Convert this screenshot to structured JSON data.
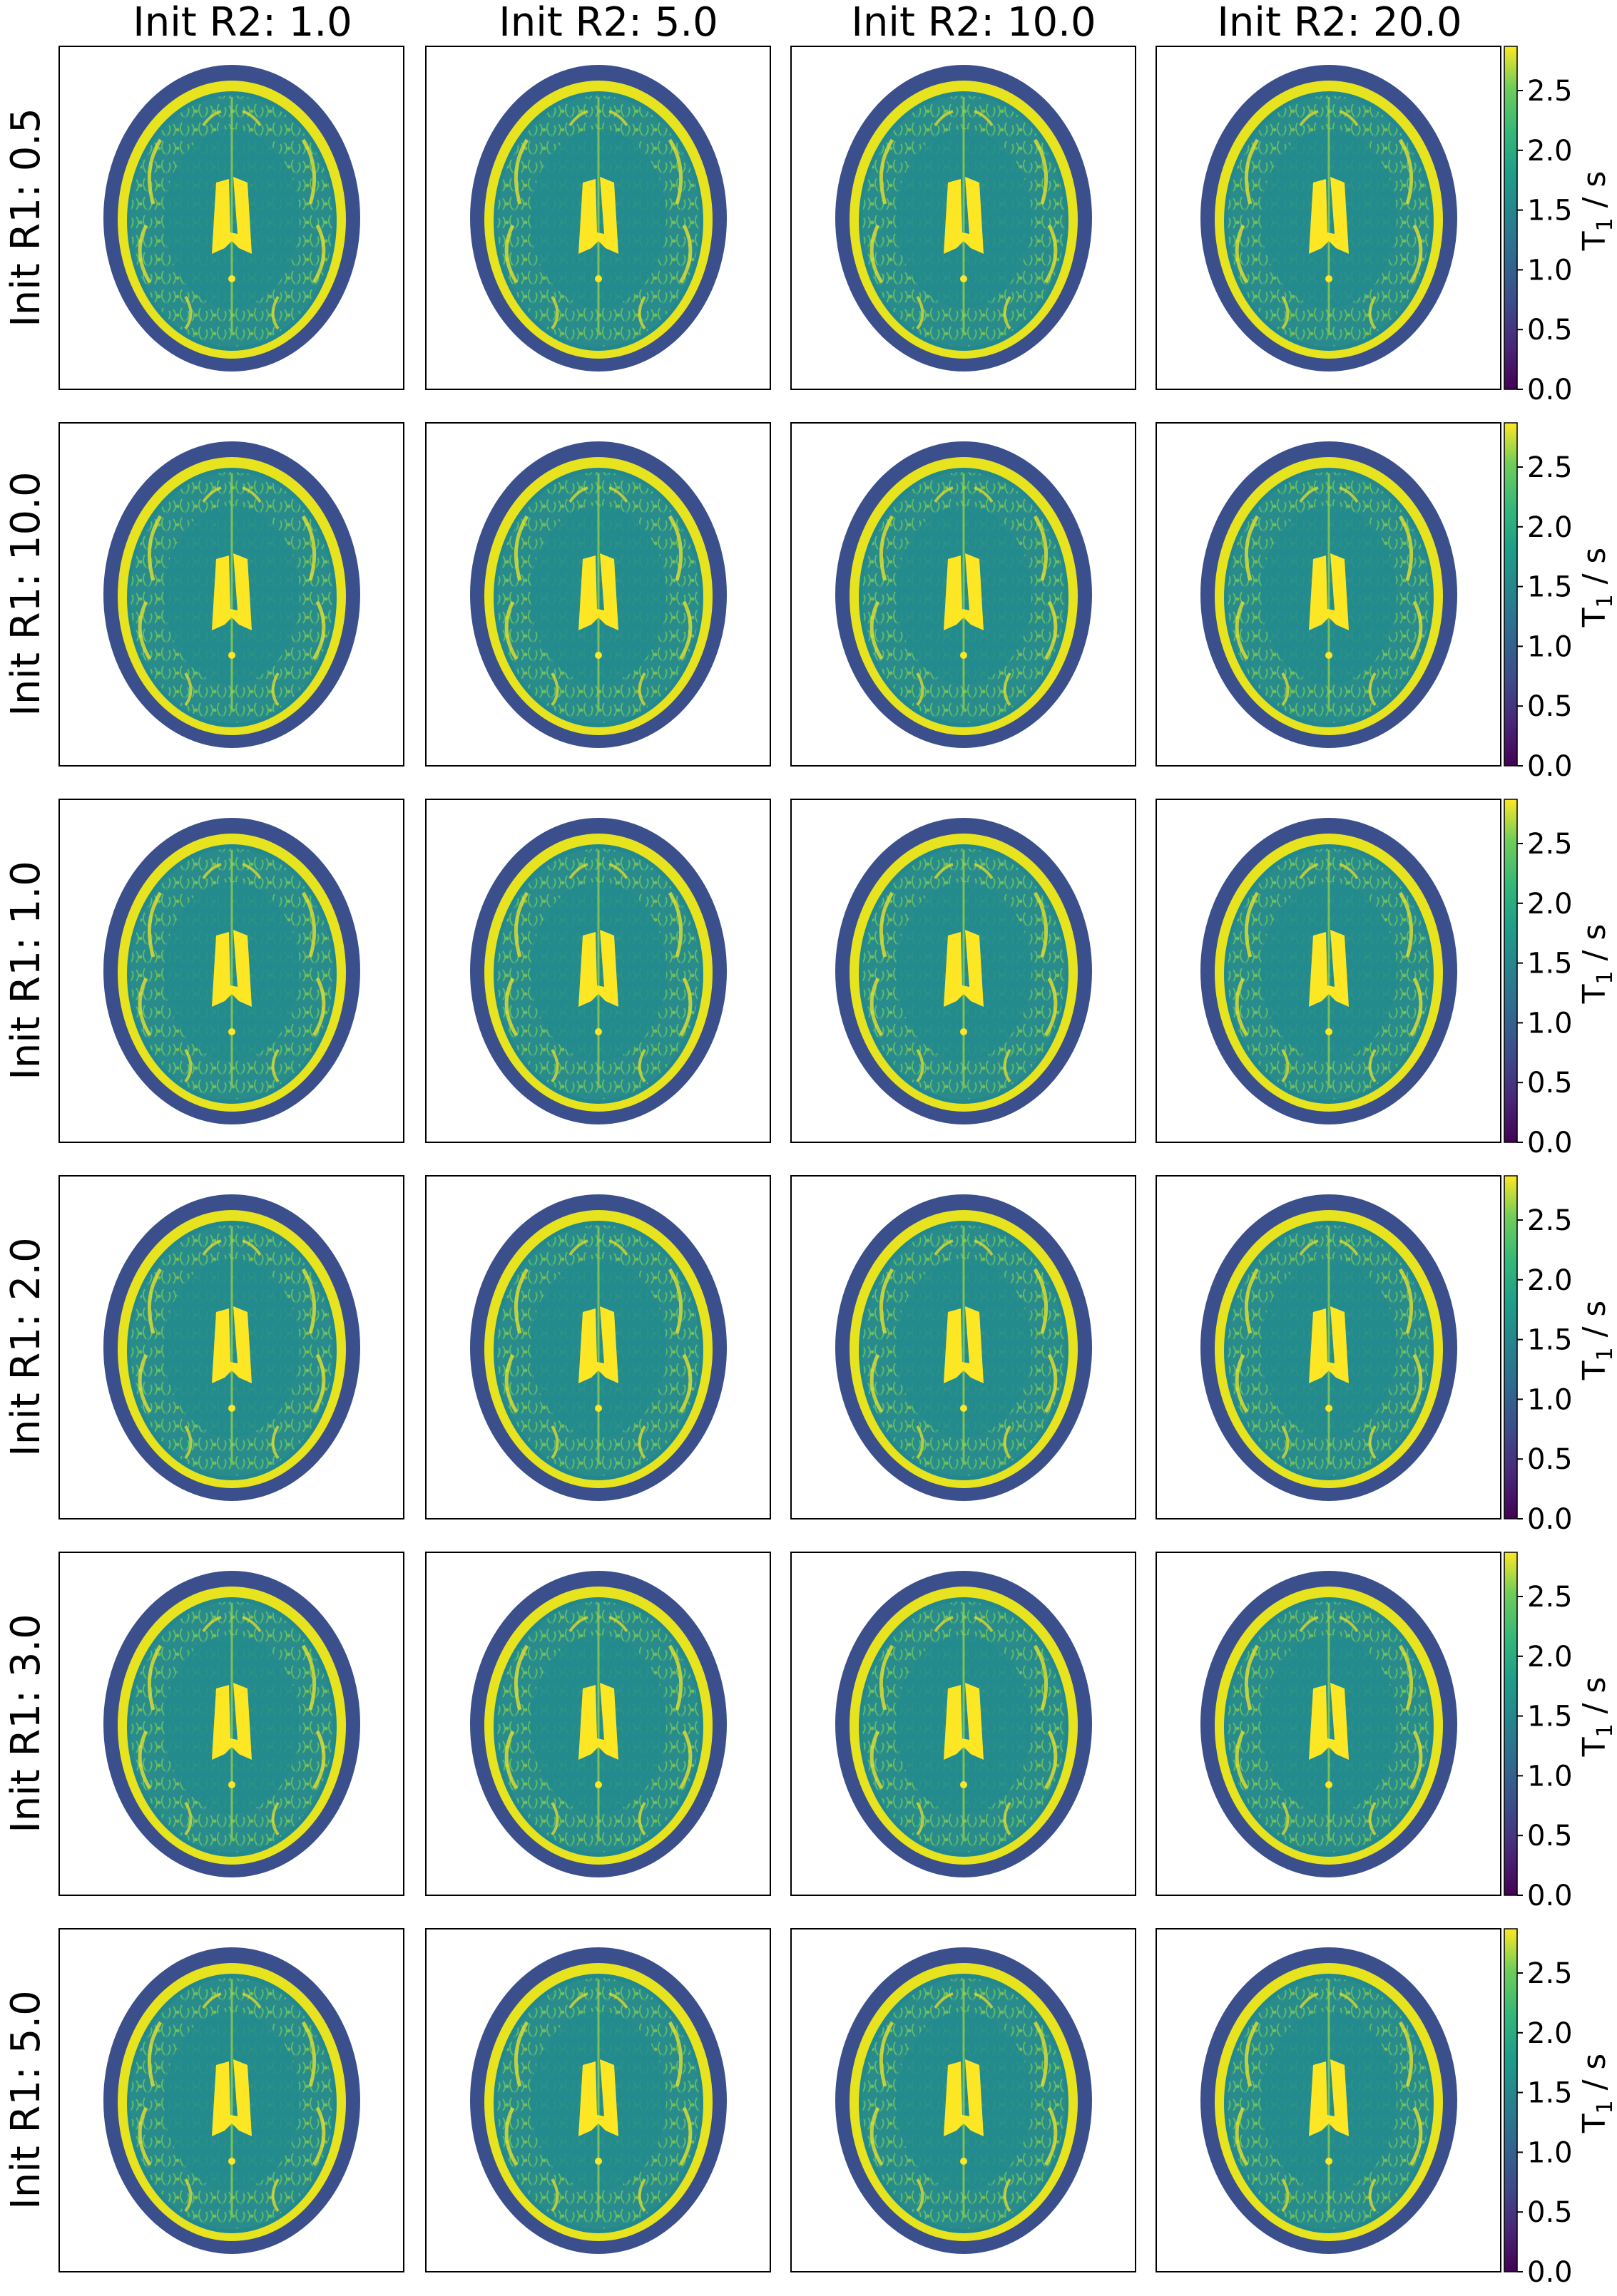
{
  "figure": {
    "column_titles": [
      "Init R2: 1.0",
      "Init R2: 5.0",
      "Init R2: 10.0",
      "Init R2: 20.0"
    ],
    "row_titles": [
      "Init R1: 0.5",
      "Init R1: 10.0",
      "Init R1: 1.0",
      "Init R1: 2.0",
      "Init R1: 3.0",
      "Init R1: 5.0"
    ],
    "colorbar": {
      "label_main": "T",
      "label_sub": "1",
      "label_rest": " / s",
      "ticks": [
        "0.0",
        "0.5",
        "1.0",
        "1.5",
        "2.0",
        "2.5"
      ],
      "tick_values": [
        0.0,
        0.5,
        1.0,
        1.5,
        2.0,
        2.5
      ],
      "range": [
        0.0,
        2.87
      ],
      "colormap": "viridis",
      "colors": [
        "#440154",
        "#3b528b",
        "#21918c",
        "#5ec962",
        "#fde725"
      ]
    },
    "image_content": "axial brain MRI T1 map"
  }
}
